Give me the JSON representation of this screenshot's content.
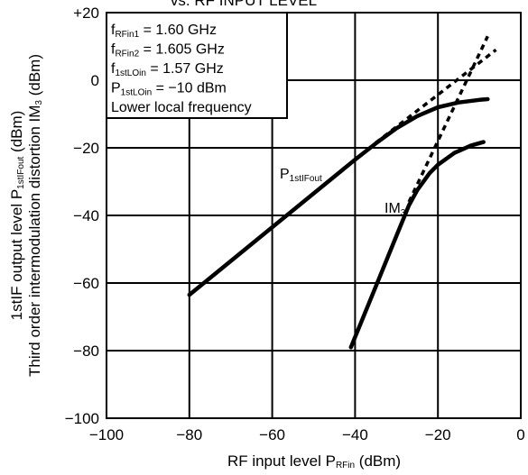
{
  "chart_data": {
    "type": "line",
    "title": "vs. RF INPUT LEVEL",
    "xlabel": {
      "main": "RF input level  P",
      "sub": "RFin",
      "unit": " (dBm)"
    },
    "ylabel": {
      "line1": {
        "main": "1stIF output level  P",
        "sub": "1stIFout",
        "unit": " (dBm)"
      },
      "line2": {
        "main": "Third order intermodulation distortion IM",
        "sub": "3",
        "unit": " (dBm)"
      }
    },
    "xlim": [
      -100,
      0
    ],
    "ylim": [
      -100,
      20
    ],
    "x_ticks": [
      {
        "value": -100,
        "label": "−100"
      },
      {
        "value": -80,
        "label": "−80"
      },
      {
        "value": -60,
        "label": "−60"
      },
      {
        "value": -40,
        "label": "−40"
      },
      {
        "value": -20,
        "label": "−20"
      },
      {
        "value": 0,
        "label": "0"
      }
    ],
    "y_ticks": [
      {
        "value": 20,
        "label": "+20"
      },
      {
        "value": 0,
        "label": "0"
      },
      {
        "value": -20,
        "label": "−20"
      },
      {
        "value": -40,
        "label": "−40"
      },
      {
        "value": -60,
        "label": "−60"
      },
      {
        "value": -80,
        "label": "−80"
      },
      {
        "value": -100,
        "label": "−100"
      }
    ],
    "grid": true,
    "conditions": [
      {
        "pre": "f",
        "sub": "RFin1",
        "post": " = 1.60 GHz"
      },
      {
        "pre": "f",
        "sub": "RFin2",
        "post": " = 1.605 GHz"
      },
      {
        "pre": "f",
        "sub": "1stLOin",
        "post": " = 1.57 GHz"
      },
      {
        "pre": "P",
        "sub": "1stLOin",
        "post": " = −10 dBm"
      },
      {
        "pre": "Lower local frequency",
        "sub": "",
        "post": ""
      }
    ],
    "series": [
      {
        "name": "P1stIFout",
        "label": {
          "main": "P",
          "sub": "1stIFout"
        },
        "style": "solid",
        "x": [
          -80,
          -70,
          -60,
          -50,
          -40,
          -35,
          -30,
          -25,
          -20,
          -15,
          -10,
          -8
        ],
        "y": [
          -63.5,
          -53.5,
          -43.5,
          -33.5,
          -23.5,
          -18.7,
          -14.2,
          -10.6,
          -8.0,
          -6.6,
          -5.8,
          -5.6
        ]
      },
      {
        "name": "IM3",
        "label": {
          "main": "IM",
          "sub": "3"
        },
        "style": "solid",
        "x": [
          -41,
          -35,
          -30,
          -27,
          -25,
          -22,
          -20,
          -16,
          -12,
          -9
        ],
        "y": [
          -79,
          -61,
          -46,
          -37,
          -32.5,
          -27.5,
          -25,
          -21.5,
          -19.3,
          -18.3
        ]
      },
      {
        "name": "P1stIFout extrapolation",
        "style": "dashed",
        "x": [
          -35,
          -6
        ],
        "y": [
          -18.5,
          9
        ]
      },
      {
        "name": "IM3 extrapolation",
        "style": "dashed",
        "x": [
          -27,
          -8
        ],
        "y": [
          -36,
          13
        ]
      }
    ]
  }
}
